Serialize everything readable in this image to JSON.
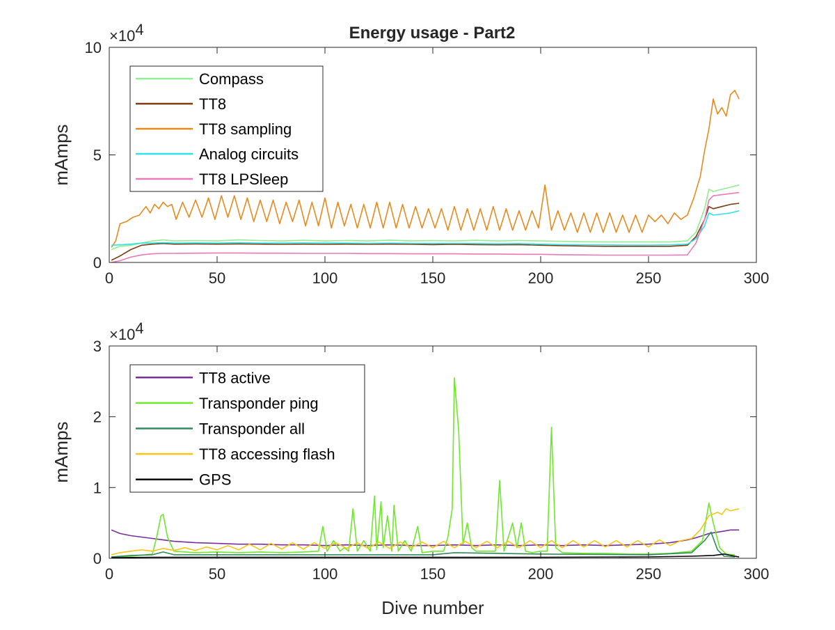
{
  "figure": {
    "title": "Energy usage - Part2"
  },
  "chart_data": [
    {
      "type": "line",
      "title": "Energy usage - Part2",
      "ylabel": "mAmps",
      "xlabel": "",
      "xlim": [
        0,
        300
      ],
      "ylim": [
        0,
        100000
      ],
      "y_multiplier": "×10^4",
      "y_multiplier_base": "×10",
      "y_multiplier_exp": "4",
      "xticks": [
        0,
        50,
        100,
        150,
        200,
        250,
        300
      ],
      "xtick_labels": [
        "0",
        "50",
        "100",
        "150",
        "200",
        "250",
        "300"
      ],
      "yticks": [
        0,
        50000,
        100000
      ],
      "ytick_labels": [
        "0",
        "5",
        "10"
      ],
      "grid": false,
      "legend_position": "top-left",
      "series": [
        {
          "name": "Compass",
          "color": "#90ee90",
          "x": [
            1,
            5,
            10,
            15,
            20,
            25,
            30,
            40,
            50,
            60,
            70,
            80,
            90,
            100,
            110,
            120,
            130,
            140,
            150,
            160,
            170,
            180,
            190,
            200,
            210,
            220,
            230,
            240,
            250,
            260,
            268,
            272,
            276,
            278,
            280,
            284,
            288,
            292
          ],
          "y": [
            6000,
            7500,
            8000,
            9000,
            10000,
            10500,
            10000,
            10200,
            10000,
            10500,
            10200,
            10000,
            10300,
            10000,
            10200,
            10000,
            10400,
            10000,
            10200,
            10000,
            10300,
            10000,
            10200,
            10000,
            9800,
            9600,
            9500,
            9500,
            9500,
            9500,
            10000,
            14000,
            25000,
            34000,
            33000,
            34000,
            35000,
            36000
          ]
        },
        {
          "name": "TT8",
          "color": "#7a3d10",
          "x": [
            1,
            5,
            10,
            15,
            20,
            25,
            30,
            40,
            50,
            60,
            70,
            80,
            90,
            100,
            110,
            120,
            130,
            140,
            150,
            160,
            170,
            180,
            190,
            200,
            210,
            220,
            230,
            240,
            250,
            260,
            268,
            272,
            276,
            278,
            280,
            284,
            288,
            292
          ],
          "y": [
            1000,
            3000,
            6000,
            8000,
            8500,
            8800,
            8500,
            8600,
            8500,
            8600,
            8500,
            8400,
            8500,
            8400,
            8500,
            8400,
            8500,
            8400,
            8300,
            8400,
            8300,
            8200,
            8300,
            8000,
            7800,
            7600,
            7500,
            7500,
            7500,
            7500,
            8000,
            12000,
            20000,
            26000,
            25000,
            26000,
            27000,
            27500
          ]
        },
        {
          "name": "TT8 sampling",
          "color": "#e58a1e",
          "x": [
            1,
            3,
            5,
            8,
            11,
            14,
            17,
            19,
            21,
            23,
            25,
            27,
            29,
            31,
            34,
            37,
            40,
            43,
            46,
            49,
            52,
            55,
            58,
            61,
            64,
            67,
            70,
            73,
            76,
            79,
            82,
            85,
            88,
            91,
            94,
            97,
            100,
            103,
            106,
            109,
            112,
            115,
            118,
            121,
            124,
            127,
            130,
            133,
            136,
            139,
            142,
            145,
            148,
            151,
            154,
            157,
            160,
            163,
            166,
            169,
            172,
            175,
            178,
            181,
            184,
            187,
            190,
            193,
            196,
            199,
            202,
            205,
            208,
            211,
            214,
            217,
            220,
            223,
            226,
            229,
            232,
            235,
            238,
            241,
            244,
            247,
            250,
            253,
            256,
            259,
            262,
            265,
            268,
            271,
            274,
            276,
            278,
            280,
            282,
            284,
            286,
            288,
            290,
            292
          ],
          "y": [
            7000,
            10000,
            18000,
            19000,
            21000,
            22000,
            26000,
            23000,
            27000,
            25000,
            28000,
            26000,
            27000,
            20000,
            28000,
            21000,
            29000,
            21000,
            30000,
            20000,
            31000,
            21000,
            31000,
            20000,
            30000,
            19000,
            29000,
            19000,
            29000,
            18000,
            28000,
            19000,
            29000,
            17000,
            28000,
            17000,
            30000,
            16000,
            28000,
            17000,
            27000,
            16000,
            27000,
            16000,
            28000,
            16000,
            28000,
            16000,
            27000,
            16000,
            26000,
            16000,
            25000,
            16000,
            25000,
            15000,
            26000,
            15000,
            25000,
            15000,
            25000,
            15000,
            26000,
            15000,
            25000,
            15000,
            24000,
            15000,
            24000,
            16000,
            36000,
            15000,
            24000,
            15000,
            23000,
            14000,
            23000,
            14000,
            23000,
            14000,
            23000,
            14000,
            22000,
            14000,
            22000,
            14000,
            22000,
            19000,
            22000,
            18000,
            23000,
            20000,
            22000,
            30000,
            40000,
            52000,
            62000,
            76000,
            69000,
            72000,
            68000,
            78000,
            80000,
            76000
          ]
        },
        {
          "name": "Analog circuits",
          "color": "#33e0e8",
          "x": [
            1,
            5,
            10,
            15,
            20,
            25,
            30,
            40,
            50,
            60,
            70,
            80,
            90,
            100,
            110,
            120,
            130,
            140,
            150,
            160,
            170,
            180,
            190,
            200,
            210,
            220,
            230,
            240,
            250,
            260,
            268,
            272,
            276,
            278,
            280,
            284,
            288,
            292
          ],
          "y": [
            8000,
            8200,
            8500,
            9000,
            9000,
            9200,
            9000,
            9100,
            9000,
            9200,
            9000,
            9000,
            9100,
            9000,
            9000,
            8900,
            9000,
            8900,
            8800,
            8900,
            8800,
            8700,
            8800,
            8500,
            8300,
            8200,
            8200,
            8100,
            8100,
            8200,
            8500,
            11000,
            17000,
            23000,
            22000,
            22500,
            23000,
            24000
          ]
        },
        {
          "name": "TT8 LPSleep",
          "color": "#e87ab8",
          "x": [
            1,
            5,
            10,
            15,
            20,
            25,
            30,
            40,
            50,
            60,
            70,
            80,
            90,
            100,
            110,
            120,
            130,
            140,
            150,
            160,
            170,
            180,
            190,
            200,
            210,
            220,
            230,
            240,
            250,
            260,
            268,
            272,
            276,
            278,
            280,
            284,
            288,
            292
          ],
          "y": [
            0,
            800,
            2500,
            3500,
            4000,
            4200,
            4200,
            4300,
            4400,
            4400,
            4300,
            4300,
            4200,
            4200,
            4200,
            4100,
            4100,
            4000,
            4000,
            4000,
            3900,
            3900,
            3800,
            3800,
            3600,
            3500,
            3400,
            3400,
            3400,
            3400,
            3500,
            9000,
            20000,
            29000,
            31000,
            31500,
            32000,
            32500
          ]
        }
      ]
    },
    {
      "type": "line",
      "title": "",
      "ylabel": "mAmps",
      "xlabel": "Dive number",
      "xlim": [
        0,
        300
      ],
      "ylim": [
        0,
        30000
      ],
      "y_multiplier": "×10^4",
      "y_multiplier_base": "×10",
      "y_multiplier_exp": "4",
      "xticks": [
        0,
        50,
        100,
        150,
        200,
        250,
        300
      ],
      "xtick_labels": [
        "0",
        "50",
        "100",
        "150",
        "200",
        "250",
        "300"
      ],
      "yticks": [
        0,
        10000,
        20000,
        30000
      ],
      "ytick_labels": [
        "0",
        "1",
        "2",
        "3"
      ],
      "grid": false,
      "legend_position": "top-left",
      "series": [
        {
          "name": "TT8 active",
          "color": "#7b2d9c",
          "x": [
            1,
            5,
            10,
            15,
            20,
            25,
            30,
            40,
            50,
            60,
            70,
            80,
            90,
            100,
            110,
            120,
            130,
            140,
            150,
            160,
            170,
            180,
            190,
            200,
            210,
            220,
            230,
            240,
            250,
            260,
            268,
            272,
            276,
            278,
            280,
            284,
            288,
            292
          ],
          "y": [
            4000,
            3500,
            3200,
            3000,
            2800,
            2600,
            2400,
            2200,
            2100,
            2000,
            2000,
            1900,
            1900,
            1800,
            1900,
            1800,
            1900,
            1800,
            1800,
            1900,
            1800,
            1900,
            1800,
            1900,
            1800,
            1900,
            1800,
            1900,
            2000,
            2200,
            2600,
            2900,
            3300,
            3500,
            3600,
            3800,
            4000,
            4000
          ]
        },
        {
          "name": "Transponder ping",
          "color": "#6de82a",
          "x": [
            1,
            10,
            20,
            22,
            24,
            25,
            27,
            30,
            40,
            50,
            60,
            70,
            80,
            90,
            97,
            99,
            101,
            104,
            107,
            109,
            111,
            113,
            115,
            118,
            121,
            123,
            124,
            126,
            127,
            129,
            131,
            132,
            134,
            137,
            140,
            143,
            145,
            150,
            155,
            157,
            159,
            160,
            162,
            164,
            166,
            168,
            170,
            175,
            179,
            181,
            183,
            185,
            187,
            189,
            191,
            193,
            196,
            200,
            203,
            205,
            207,
            210,
            220,
            230,
            240,
            250,
            260,
            270,
            275,
            278,
            280,
            283,
            286,
            290
          ],
          "y": [
            200,
            300,
            600,
            3000,
            6000,
            6200,
            3000,
            1000,
            800,
            900,
            800,
            900,
            800,
            900,
            1000,
            4500,
            1000,
            2500,
            1000,
            1500,
            1000,
            7000,
            1000,
            2500,
            1000,
            8800,
            1200,
            8000,
            1500,
            6000,
            1000,
            7500,
            1000,
            2500,
            1000,
            4500,
            800,
            1000,
            1000,
            3000,
            7000,
            25500,
            18000,
            2000,
            5000,
            1500,
            1000,
            1000,
            1000,
            11000,
            1000,
            3000,
            5000,
            1500,
            5000,
            1000,
            800,
            1000,
            1000,
            18500,
            1500,
            800,
            700,
            700,
            600,
            600,
            700,
            1000,
            2500,
            7800,
            5000,
            1500,
            600,
            500
          ]
        },
        {
          "name": "Transponder all",
          "color": "#2e8b57",
          "x": [
            1,
            10,
            20,
            25,
            30,
            50,
            100,
            150,
            160,
            200,
            250,
            270,
            276,
            279,
            282,
            285,
            290
          ],
          "y": [
            200,
            400,
            500,
            900,
            500,
            500,
            500,
            500,
            800,
            600,
            500,
            800,
            2500,
            3700,
            1200,
            300,
            200
          ]
        },
        {
          "name": "TT8 accessing flash",
          "color": "#f5c518",
          "x": [
            1,
            5,
            10,
            15,
            20,
            25,
            30,
            35,
            40,
            45,
            50,
            55,
            60,
            65,
            70,
            75,
            80,
            85,
            90,
            95,
            100,
            105,
            110,
            115,
            120,
            125,
            130,
            135,
            140,
            145,
            150,
            155,
            160,
            165,
            170,
            175,
            180,
            185,
            190,
            195,
            200,
            205,
            210,
            215,
            220,
            225,
            230,
            235,
            240,
            245,
            250,
            255,
            260,
            265,
            270,
            274,
            278,
            282,
            284,
            286,
            288,
            292
          ],
          "y": [
            500,
            800,
            1000,
            1200,
            1000,
            1400,
            1100,
            1500,
            1100,
            1600,
            1200,
            1800,
            1200,
            2000,
            1200,
            2100,
            1300,
            2200,
            1300,
            2200,
            1400,
            2200,
            1400,
            2200,
            1400,
            2300,
            1400,
            2300,
            1500,
            2300,
            1500,
            2400,
            1500,
            2400,
            1500,
            2400,
            1500,
            2400,
            1500,
            2500,
            1500,
            2500,
            1500,
            2500,
            1600,
            2500,
            1600,
            2500,
            1600,
            2500,
            1600,
            2600,
            1800,
            2500,
            2800,
            4000,
            6000,
            6500,
            6200,
            7000,
            6700,
            7000
          ]
        },
        {
          "name": "GPS",
          "color": "#000000",
          "x": [
            1,
            20,
            50,
            100,
            150,
            200,
            250,
            270,
            280,
            285,
            290,
            292
          ],
          "y": [
            100,
            150,
            150,
            150,
            150,
            150,
            200,
            300,
            400,
            600,
            300,
            200
          ]
        }
      ]
    }
  ]
}
